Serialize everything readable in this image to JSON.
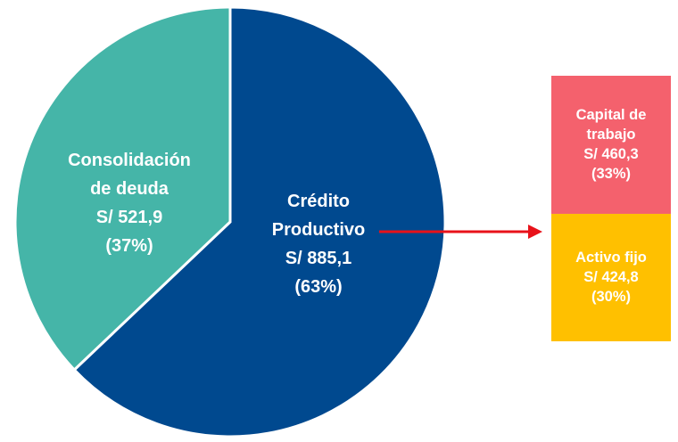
{
  "chart_data": [
    {
      "type": "pie",
      "categories": [
        "Crédito Productivo",
        "Consolidación de deuda"
      ],
      "values": [
        885.1,
        521.9
      ],
      "value_labels": [
        "S/ 885,1",
        "S/ 521,9"
      ],
      "percent_labels": [
        "(63%)",
        "(37%)"
      ],
      "colors": [
        "#00498f",
        "#45b5a8"
      ]
    },
    {
      "type": "stacked-bar",
      "categories": [
        "Capital de trabajo",
        "Activo fijo"
      ],
      "values": [
        460.3,
        424.8
      ],
      "value_labels": [
        "S/ 460,3",
        "S/ 424,8"
      ],
      "percent_labels": [
        "(33%)",
        "(30%)"
      ],
      "colors": [
        "#f4616d",
        "#ffc000"
      ]
    }
  ]
}
